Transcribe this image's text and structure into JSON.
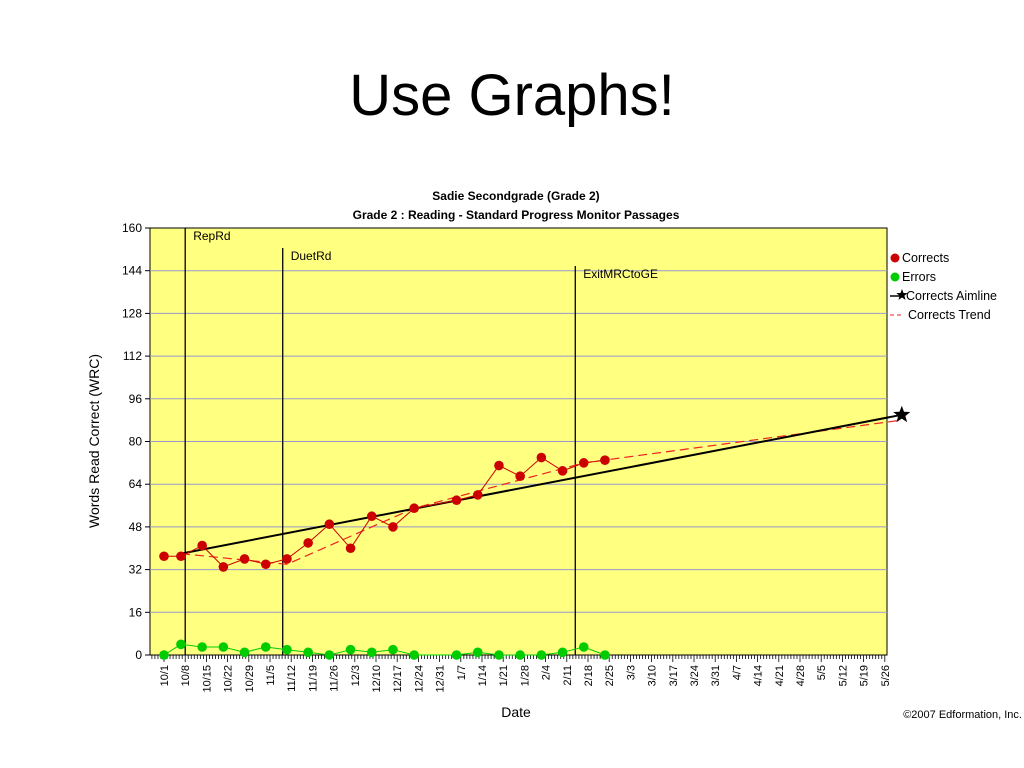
{
  "slide": {
    "title": "Use Graphs!"
  },
  "chart_data": {
    "type": "line",
    "title": "Sadie Secondgrade (Grade 2)",
    "subtitle": "Grade 2 : Reading - Standard Progress Monitor Passages",
    "xlabel": "Date",
    "ylabel": "Words Read Correct (WRC)",
    "ylim": [
      0,
      160
    ],
    "yticks": [
      0,
      16,
      32,
      48,
      64,
      80,
      96,
      112,
      128,
      144,
      160
    ],
    "grid": true,
    "legend_position": "right",
    "plot_background": "#ffff80",
    "x_tick_labels": [
      "10/1",
      "10/8",
      "10/15",
      "10/22",
      "10/29",
      "11/5",
      "11/12",
      "11/19",
      "11/26",
      "12/3",
      "12/10",
      "12/17",
      "12/24",
      "12/31",
      "1/7",
      "1/14",
      "1/21",
      "1/28",
      "2/4",
      "2/11",
      "2/18",
      "2/25",
      "3/3",
      "3/10",
      "3/17",
      "3/24",
      "3/31",
      "4/7",
      "4/14",
      "4/21",
      "4/28",
      "5/5",
      "5/12",
      "5/19",
      "5/26"
    ],
    "phase_lines": [
      {
        "label": "RepRd",
        "x": 1
      },
      {
        "label": "DuetRd",
        "x": 5.6
      },
      {
        "label": "ExitMRCtoGE",
        "x": 19.4
      }
    ],
    "series": [
      {
        "name": "Corrects",
        "color": "#cc0000",
        "marker": "circle",
        "x": [
          0,
          0.8,
          1.8,
          2.8,
          3.8,
          4.8,
          5.8,
          6.8,
          7.8,
          8.8,
          9.8,
          10.8,
          11.8,
          13.8,
          14.8,
          15.8,
          16.8,
          17.8,
          18.8,
          19.8,
          20.8
        ],
        "y": [
          37,
          37,
          41,
          33,
          36,
          34,
          36,
          42,
          49,
          40,
          52,
          48,
          55,
          58,
          60,
          71,
          67,
          74,
          69,
          72,
          73
        ]
      },
      {
        "name": "Errors",
        "color": "#00cc00",
        "marker": "circle",
        "x": [
          0,
          0.8,
          1.8,
          2.8,
          3.8,
          4.8,
          5.8,
          6.8,
          7.8,
          8.8,
          9.8,
          10.8,
          11.8,
          13.8,
          14.8,
          15.8,
          16.8,
          17.8,
          18.8,
          19.8,
          20.8
        ],
        "y": [
          0,
          4,
          3,
          3,
          1,
          3,
          2,
          1,
          0,
          2,
          1,
          2,
          0,
          0,
          1,
          0,
          0,
          0,
          1,
          3,
          0
        ]
      },
      {
        "name": "Corrects Aimline",
        "color": "#000000",
        "marker": "star",
        "x": [
          0.8,
          34.8
        ],
        "y": [
          38,
          90
        ]
      },
      {
        "name": "Corrects Trend",
        "color": "#ee2222",
        "dashed": true,
        "x": [
          0.8,
          5.8,
          11.8,
          19.8,
          34.8
        ],
        "y": [
          38,
          34,
          55,
          72,
          88
        ]
      }
    ]
  },
  "copyright": "©2007 Edformation, Inc."
}
